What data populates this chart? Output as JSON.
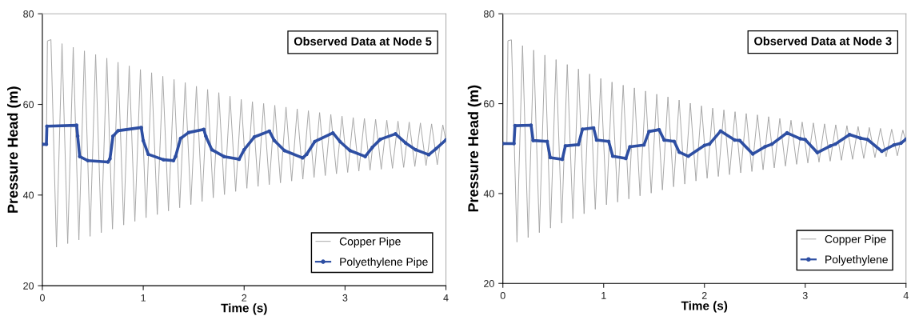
{
  "chart_data": [
    {
      "type": "line",
      "title": "Observed Data at Node 5",
      "xlabel": "Time (s)",
      "ylabel": "Pressure Head (m)",
      "xlim": [
        0,
        4
      ],
      "xticks": [
        0,
        1,
        2,
        3,
        4
      ],
      "ylim": [
        20,
        80
      ],
      "yticks": [
        20,
        40,
        60,
        80
      ],
      "grid": false,
      "legend": "bottom right",
      "series": [
        {
          "name": "Copper Pipe",
          "color": "#a6a6a6",
          "marker": "none",
          "x": [
            0,
            0.04,
            0.05,
            0.085,
            0.14,
            0.195,
            0.251,
            0.306,
            0.362,
            0.417,
            0.473,
            0.528,
            0.584,
            0.639,
            0.695,
            0.75,
            0.806,
            0.861,
            0.917,
            0.972,
            1.028,
            1.083,
            1.139,
            1.194,
            1.25,
            1.305,
            1.361,
            1.416,
            1.472,
            1.527,
            1.583,
            1.638,
            1.694,
            1.749,
            1.805,
            1.86,
            1.916,
            1.971,
            2.027,
            2.082,
            2.138,
            2.193,
            2.249,
            2.304,
            2.36,
            2.415,
            2.471,
            2.526,
            2.582,
            2.637,
            2.693,
            2.748,
            2.804,
            2.859,
            2.915,
            2.97,
            3.026,
            3.081,
            3.137,
            3.192,
            3.248,
            3.303,
            3.359,
            3.414,
            3.47,
            3.525,
            3.581,
            3.636,
            3.692,
            3.747,
            3.803,
            3.858,
            3.914,
            3.969,
            4.0
          ],
          "values": [
            51.3,
            51.3,
            74.0,
            74.3,
            28.5,
            73.4,
            29.3,
            72.6,
            30.1,
            71.8,
            30.9,
            71.0,
            31.7,
            70.2,
            32.5,
            69.3,
            33.4,
            68.5,
            34.2,
            67.7,
            35.0,
            67.0,
            35.7,
            66.2,
            36.5,
            65.5,
            37.2,
            64.8,
            37.9,
            64.0,
            38.6,
            63.3,
            39.4,
            62.6,
            40.1,
            61.8,
            40.8,
            61.1,
            41.5,
            60.6,
            41.9,
            60.2,
            42.3,
            59.8,
            42.7,
            59.4,
            43.1,
            59.0,
            43.5,
            58.6,
            43.9,
            58.2,
            44.3,
            57.8,
            44.7,
            57.4,
            45.0,
            57.1,
            45.3,
            56.9,
            45.5,
            56.7,
            45.7,
            56.5,
            45.9,
            56.3,
            46.1,
            56.1,
            46.3,
            55.9,
            46.5,
            55.7,
            46.7,
            55.5,
            52.0
          ]
        },
        {
          "name": "Polyethylene Pipe",
          "color": "#2e4fa3",
          "marker": "circle",
          "x": [
            0,
            0.04,
            0.045,
            0.34,
            0.35,
            0.37,
            0.45,
            0.65,
            0.67,
            0.7,
            0.75,
            0.98,
            1.0,
            1.05,
            1.2,
            1.3,
            1.32,
            1.37,
            1.45,
            1.6,
            1.62,
            1.68,
            1.8,
            1.95,
            2.0,
            2.1,
            2.25,
            2.3,
            2.4,
            2.58,
            2.62,
            2.7,
            2.88,
            2.95,
            3.05,
            3.2,
            3.27,
            3.35,
            3.5,
            3.6,
            3.7,
            3.83,
            3.9,
            4.0
          ],
          "values": [
            51.2,
            51.2,
            55.2,
            55.4,
            53.0,
            48.5,
            47.6,
            47.3,
            48.0,
            53.0,
            54.2,
            54.9,
            52.0,
            49.0,
            47.8,
            47.6,
            48.5,
            52.5,
            53.8,
            54.5,
            53.0,
            50.0,
            48.5,
            47.9,
            50.0,
            52.8,
            54.1,
            52.0,
            49.8,
            48.2,
            49.0,
            51.8,
            53.7,
            51.8,
            49.8,
            48.5,
            50.5,
            52.3,
            53.5,
            51.5,
            50.0,
            48.9,
            50.2,
            52.2
          ]
        }
      ]
    },
    {
      "type": "line",
      "title": "Observed Data at Node 3",
      "xlabel": "Time (s)",
      "ylabel": "Pressure Head (m)",
      "xlim": [
        0,
        4
      ],
      "xticks": [
        0,
        1,
        2,
        3,
        4
      ],
      "ylim": [
        20,
        80
      ],
      "yticks": [
        20,
        40,
        60,
        80
      ],
      "grid": false,
      "legend": "bottom right",
      "series": [
        {
          "name": "Copper Pipe",
          "color": "#a6a6a6",
          "marker": "none",
          "x": [
            0,
            0.04,
            0.05,
            0.085,
            0.14,
            0.195,
            0.251,
            0.306,
            0.362,
            0.417,
            0.473,
            0.528,
            0.584,
            0.639,
            0.695,
            0.75,
            0.806,
            0.861,
            0.917,
            0.972,
            1.028,
            1.083,
            1.139,
            1.194,
            1.25,
            1.305,
            1.361,
            1.416,
            1.472,
            1.527,
            1.583,
            1.638,
            1.694,
            1.749,
            1.805,
            1.86,
            1.916,
            1.971,
            2.027,
            2.082,
            2.138,
            2.193,
            2.249,
            2.304,
            2.36,
            2.415,
            2.471,
            2.526,
            2.582,
            2.637,
            2.693,
            2.748,
            2.804,
            2.859,
            2.915,
            2.97,
            3.026,
            3.081,
            3.137,
            3.192,
            3.248,
            3.303,
            3.359,
            3.414,
            3.47,
            3.525,
            3.581,
            3.636,
            3.692,
            3.747,
            3.803,
            3.858,
            3.914,
            3.969,
            4.0
          ],
          "values": [
            51.3,
            51.3,
            74.0,
            74.2,
            29.2,
            72.9,
            30.2,
            71.9,
            31.3,
            70.8,
            32.3,
            69.8,
            33.4,
            68.7,
            34.4,
            67.7,
            35.5,
            66.6,
            36.5,
            65.6,
            37.5,
            64.8,
            38.1,
            64.1,
            38.8,
            63.5,
            39.5,
            62.8,
            40.1,
            62.1,
            40.8,
            61.5,
            41.5,
            60.8,
            42.1,
            60.1,
            42.8,
            59.5,
            43.4,
            59.0,
            43.8,
            58.6,
            44.2,
            58.2,
            44.6,
            57.8,
            44.9,
            57.5,
            45.3,
            57.1,
            45.7,
            56.7,
            46.1,
            56.3,
            46.5,
            55.9,
            46.8,
            55.7,
            47.0,
            55.5,
            47.2,
            55.3,
            47.4,
            55.1,
            47.6,
            54.9,
            47.8,
            54.7,
            48.0,
            54.5,
            48.2,
            54.3,
            48.4,
            54.1,
            51.5
          ]
        },
        {
          "name": "Polyethylene",
          "color": "#2e4fa3",
          "marker": "circle",
          "x": [
            0,
            0.11,
            0.12,
            0.28,
            0.3,
            0.44,
            0.47,
            0.59,
            0.62,
            0.75,
            0.79,
            0.9,
            0.93,
            1.05,
            1.09,
            1.22,
            1.26,
            1.4,
            1.45,
            1.55,
            1.6,
            1.7,
            1.75,
            1.84,
            2.0,
            2.05,
            2.16,
            2.3,
            2.35,
            2.48,
            2.6,
            2.67,
            2.82,
            2.95,
            3.0,
            3.12,
            3.25,
            3.3,
            3.44,
            3.55,
            3.62,
            3.76,
            3.88,
            3.95,
            4.0
          ],
          "values": [
            51.1,
            51.1,
            55.1,
            55.2,
            51.8,
            51.6,
            48.0,
            47.6,
            50.6,
            50.9,
            54.3,
            54.6,
            51.9,
            51.6,
            48.3,
            47.8,
            50.4,
            50.8,
            53.8,
            54.2,
            51.9,
            51.6,
            49.2,
            48.3,
            50.7,
            51.0,
            53.9,
            51.9,
            51.8,
            48.8,
            50.4,
            51.0,
            53.5,
            52.2,
            52.0,
            49.1,
            50.6,
            51.0,
            53.1,
            52.3,
            52.0,
            49.4,
            50.8,
            51.2,
            52.1
          ]
        }
      ]
    }
  ]
}
